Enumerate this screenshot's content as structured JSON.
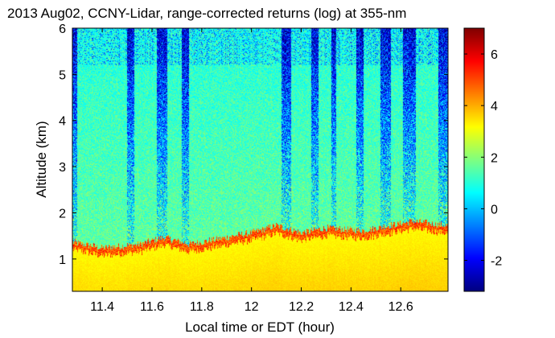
{
  "chart_data": {
    "type": "heatmap",
    "title": "2013 Aug02, CCNY-Lidar, range-corrected returns (log) at 355-nm",
    "xlabel": "Local time or EDT (hour)",
    "ylabel": "Altitude (km)",
    "xlim": [
      11.28,
      12.79
    ],
    "ylim": [
      0.3,
      6.0
    ],
    "x_ticks": [
      11.4,
      11.6,
      11.8,
      12,
      12.2,
      12.4,
      12.6
    ],
    "x_tick_labels": [
      "11.4",
      "11.6",
      "11.8",
      "12",
      "12.2",
      "12.4",
      "12.6"
    ],
    "y_ticks": [
      1,
      2,
      3,
      4,
      5,
      6
    ],
    "y_tick_labels": [
      "1",
      "2",
      "3",
      "4",
      "5",
      "6"
    ],
    "colorbar": {
      "range": [
        -3.2,
        7.0
      ],
      "ticks": [
        -2,
        0,
        2,
        4,
        6
      ],
      "tick_labels": [
        "-2",
        "0",
        "2",
        "4",
        "6"
      ],
      "colormap": "jet"
    },
    "structure": {
      "boundary_layer_top_km": [
        [
          11.28,
          1.25
        ],
        [
          11.4,
          1.12
        ],
        [
          11.55,
          1.2
        ],
        [
          11.65,
          1.35
        ],
        [
          11.75,
          1.2
        ],
        [
          11.85,
          1.3
        ],
        [
          12.0,
          1.45
        ],
        [
          12.1,
          1.6
        ],
        [
          12.2,
          1.45
        ],
        [
          12.3,
          1.55
        ],
        [
          12.45,
          1.5
        ],
        [
          12.55,
          1.6
        ],
        [
          12.65,
          1.7
        ],
        [
          12.79,
          1.6
        ]
      ],
      "boundary_layer_value": 4.0,
      "mixed_layer_value": 3.2,
      "free_troposphere_value": 1.6,
      "low_signal_value": -2.5,
      "low_signal_columns_hours": [
        [
          11.28,
          11.3
        ],
        [
          11.5,
          11.53
        ],
        [
          11.62,
          11.66
        ],
        [
          11.72,
          11.75
        ],
        [
          12.12,
          12.16
        ],
        [
          12.24,
          12.27
        ],
        [
          12.32,
          12.34
        ],
        [
          12.42,
          12.45
        ],
        [
          12.52,
          12.56
        ],
        [
          12.61,
          12.66
        ],
        [
          12.75,
          12.79
        ]
      ]
    }
  }
}
